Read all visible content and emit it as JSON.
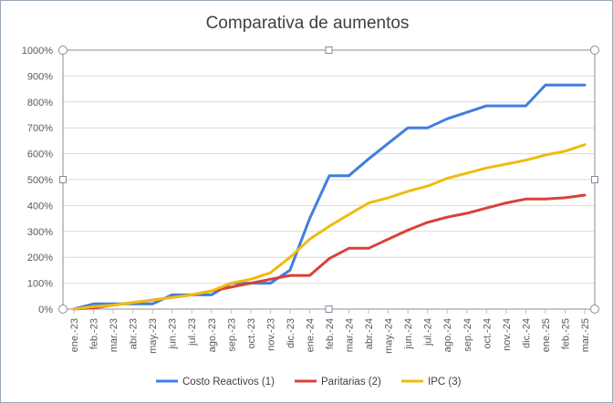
{
  "chart_data": {
    "type": "line",
    "title": "Comparativa de aumentos",
    "categories": [
      "ene.-23",
      "feb.-23",
      "mar.-23",
      "abr.-23",
      "may.-23",
      "jun.-23",
      "jul.-23",
      "ago.-23",
      "sep.-23",
      "oct.-23",
      "nov.-23",
      "dic.-23",
      "ene.-24",
      "feb.-24",
      "mar.-24",
      "abr.-24",
      "may.-24",
      "jun.-24",
      "jul.-24",
      "ago.-24",
      "sep.-24",
      "oct.-24",
      "nov.-24",
      "dic.-24",
      "ene.-25",
      "feb.-25",
      "mar.-25"
    ],
    "y_ticks": [
      "0%",
      "100%",
      "200%",
      "300%",
      "400%",
      "500%",
      "600%",
      "700%",
      "800%",
      "900%",
      "1000%"
    ],
    "ylim": [
      0,
      1000
    ],
    "grid": true,
    "legend_position": "bottom",
    "series": [
      {
        "name": "Costo Reactivos (1)",
        "color": "#3f7fe0",
        "values": [
          0,
          20,
          20,
          20,
          20,
          55,
          55,
          55,
          100,
          100,
          100,
          150,
          350,
          515,
          515,
          580,
          640,
          700,
          700,
          735,
          760,
          785,
          785,
          785,
          865,
          865,
          865
        ]
      },
      {
        "name": "Paritarias (2)",
        "color": "#d94138",
        "values": [
          0,
          5,
          15,
          25,
          35,
          45,
          55,
          70,
          85,
          100,
          115,
          130,
          130,
          195,
          235,
          235,
          270,
          305,
          335,
          355,
          370,
          390,
          410,
          425,
          425,
          430,
          440
        ]
      },
      {
        "name": "IPC (3)",
        "color": "#f0bb0e",
        "values": [
          0,
          10,
          15,
          25,
          35,
          45,
          55,
          70,
          100,
          115,
          140,
          200,
          270,
          320,
          365,
          410,
          430,
          455,
          475,
          505,
          525,
          545,
          560,
          575,
          595,
          610,
          635
        ]
      }
    ]
  }
}
